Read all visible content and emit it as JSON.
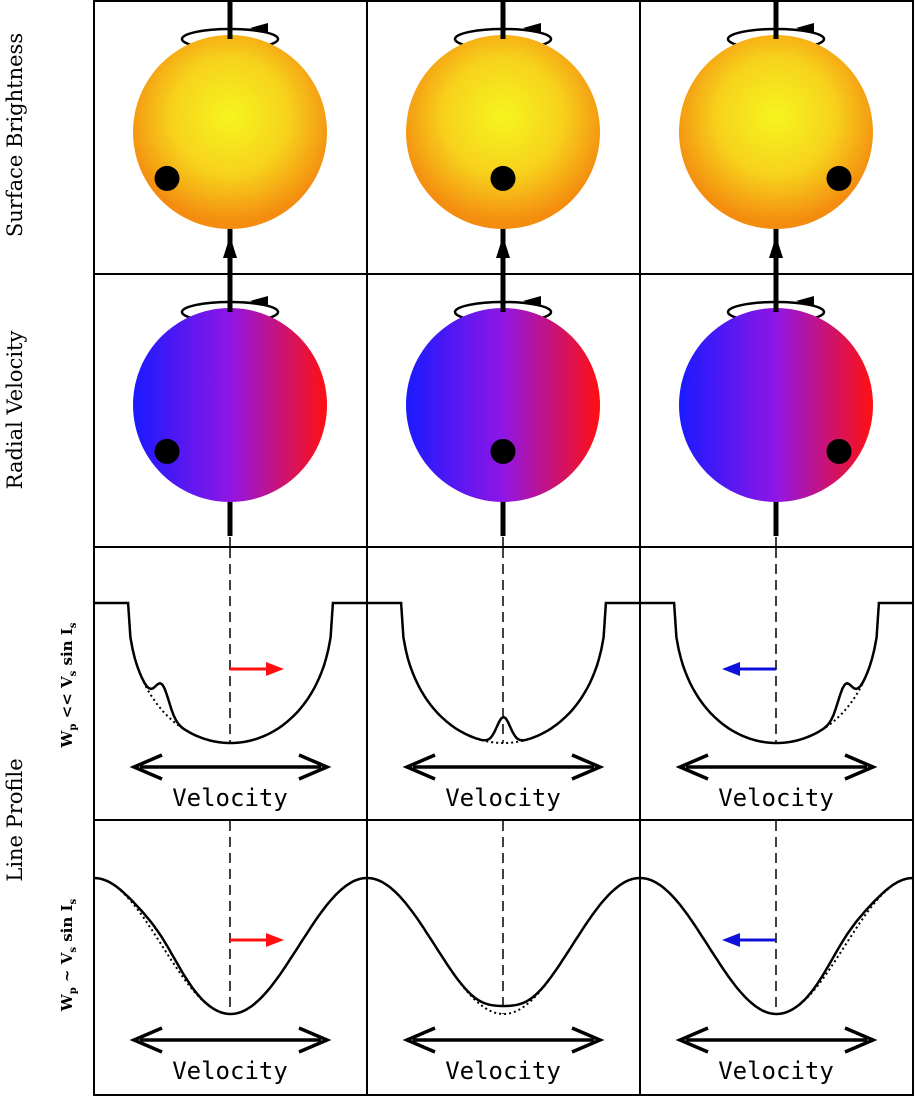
{
  "row_labels": {
    "surface_brightness": "Surface Brightness",
    "radial_velocity": "Radial Velocity",
    "line_profile": "Line Profile"
  },
  "profile_rows": [
    {
      "label_main": "W",
      "label_sub": "p",
      "label_rel": " << V",
      "label_sub2": "s",
      "label_tail": " sin I",
      "label_sub3": "s"
    },
    {
      "label_main": "W",
      "label_sub": "p",
      "label_rel": " ~ V",
      "label_sub2": "s",
      "label_tail": " sin I",
      "label_sub3": "s"
    }
  ],
  "axis_label": "Velocity",
  "colors": {
    "star_core": "#f5f51e",
    "star_limb": "#f48c0f",
    "rv_blue": "#1a1aff",
    "rv_mid": "#8f16e6",
    "rv_red": "#ff1010",
    "planet": "#000000",
    "redshift_arrow": "#ff1010",
    "blueshift_arrow": "#1010dd"
  },
  "transit": [
    {
      "phase": "ingress",
      "planet_x": -0.5,
      "planet_y": 0.58,
      "anomaly": "redshift",
      "arrow_dir": "right"
    },
    {
      "phase": "center",
      "planet_x": 0.0,
      "planet_y": 0.58,
      "anomaly": "none",
      "arrow_dir": "none"
    },
    {
      "phase": "egress",
      "planet_x": 0.5,
      "planet_y": 0.58,
      "anomaly": "blueshift",
      "arrow_dir": "left"
    }
  ],
  "icons": [
    "rotation-axis-arrow-icon",
    "rotation-direction-icon",
    "double-headed-arrow-icon"
  ]
}
